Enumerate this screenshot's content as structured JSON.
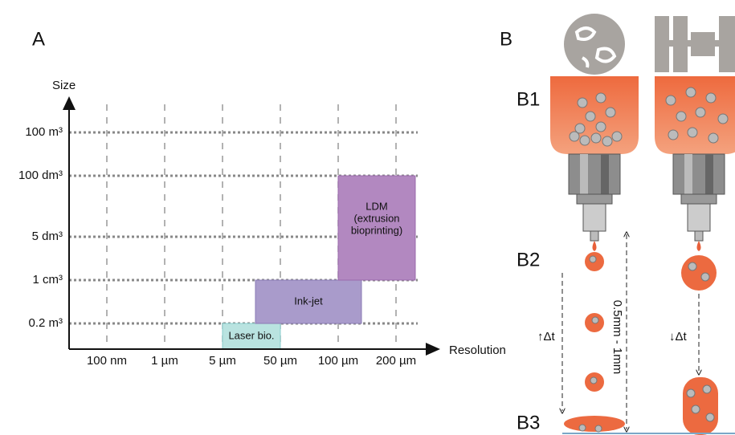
{
  "panel_a": {
    "label": "A",
    "y_axis_label": "Size",
    "x_axis_label": "Resolution",
    "x_ticks": [
      "100 nm",
      "1 µm",
      "5 µm",
      "50 µm",
      "100 µm",
      "200 µm"
    ],
    "y_ticks": [
      "100 m³",
      "100 dm³",
      "5 dm³",
      "1 cm³",
      "0.2 m³"
    ],
    "boxes": [
      {
        "label": [
          "Laser bio."
        ]
      },
      {
        "label": [
          "Ink-jet"
        ]
      },
      {
        "label": [
          "LDM",
          "(extrusion",
          "bioprinting)"
        ]
      }
    ]
  },
  "panel_b": {
    "label": "B",
    "stages": [
      "B1",
      "B2",
      "B3"
    ],
    "left_interval": "↑Δt",
    "right_interval": "↓Δt",
    "distance": "0.5mm - 1mm"
  }
}
